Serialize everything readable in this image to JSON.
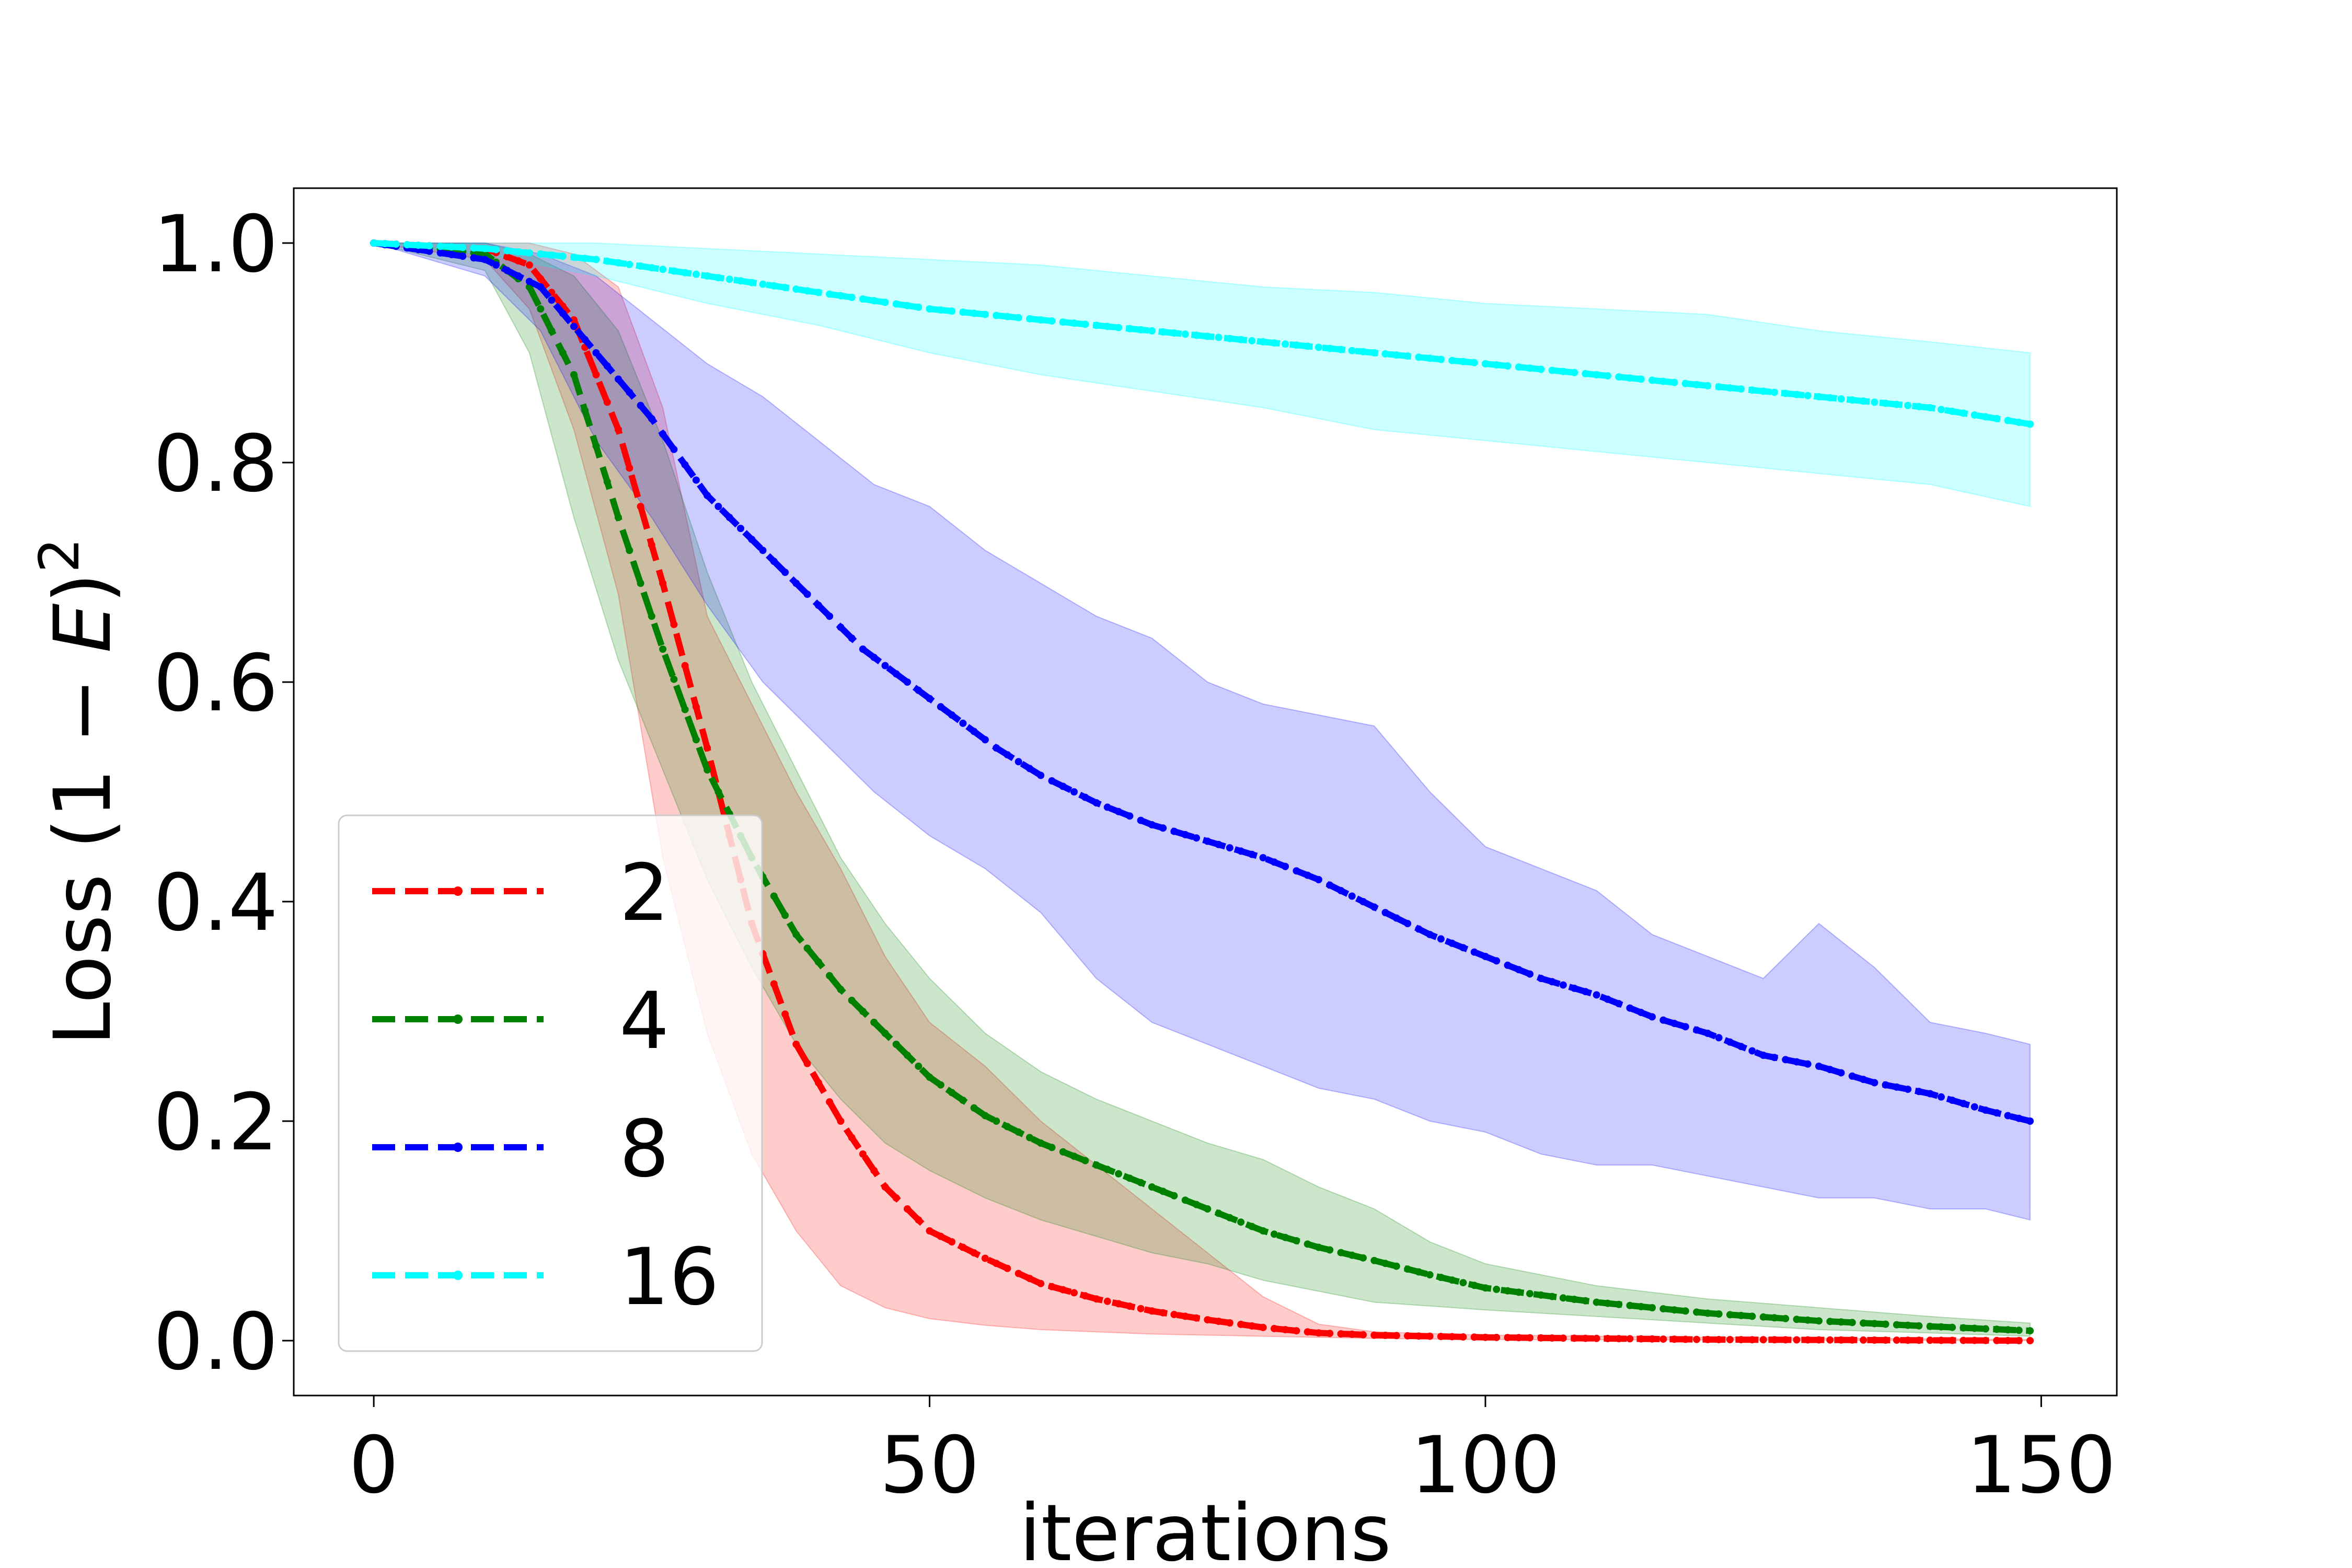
{
  "chart_data": {
    "type": "line",
    "title": "",
    "xlabel": "iterations",
    "ylabel_main": "Loss (1 − ",
    "ylabel_var": "E",
    "ylabel_close": ")",
    "ylabel_sup": "2",
    "xlim": [
      -7.2,
      156.8
    ],
    "ylim": [
      -0.05,
      1.05
    ],
    "xticks": [
      0,
      50,
      100,
      150
    ],
    "xtick_labels": [
      "0",
      "50",
      "100",
      "150"
    ],
    "yticks": [
      0.0,
      0.2,
      0.4,
      0.6,
      0.8,
      1.0
    ],
    "ytick_labels": [
      "0.0",
      "0.2",
      "0.4",
      "0.6",
      "0.8",
      "1.0"
    ],
    "grid": false,
    "legend_position": "lower-left",
    "x_range": [
      0,
      149
    ],
    "series": [
      {
        "name": "2",
        "color": "#ff0000",
        "mean": [
          [
            0,
            1.0
          ],
          [
            10,
            0.995
          ],
          [
            14,
            0.98
          ],
          [
            18,
            0.93
          ],
          [
            22,
            0.83
          ],
          [
            26,
            0.69
          ],
          [
            30,
            0.54
          ],
          [
            34,
            0.38
          ],
          [
            38,
            0.27
          ],
          [
            42,
            0.2
          ],
          [
            46,
            0.14
          ],
          [
            50,
            0.1
          ],
          [
            55,
            0.075
          ],
          [
            60,
            0.052
          ],
          [
            65,
            0.038
          ],
          [
            70,
            0.027
          ],
          [
            75,
            0.019
          ],
          [
            80,
            0.012
          ],
          [
            85,
            0.007
          ],
          [
            90,
            0.005
          ],
          [
            100,
            0.003
          ],
          [
            110,
            0.002
          ],
          [
            120,
            0.001
          ],
          [
            149,
            0.0
          ]
        ],
        "upper": [
          [
            0,
            1.0
          ],
          [
            10,
            1.0
          ],
          [
            14,
            1.0
          ],
          [
            18,
            0.99
          ],
          [
            22,
            0.96
          ],
          [
            26,
            0.85
          ],
          [
            30,
            0.66
          ],
          [
            34,
            0.58
          ],
          [
            38,
            0.5
          ],
          [
            42,
            0.43
          ],
          [
            46,
            0.35
          ],
          [
            50,
            0.29
          ],
          [
            55,
            0.25
          ],
          [
            60,
            0.2
          ],
          [
            65,
            0.16
          ],
          [
            70,
            0.12
          ],
          [
            75,
            0.08
          ],
          [
            80,
            0.04
          ],
          [
            85,
            0.015
          ],
          [
            90,
            0.008
          ],
          [
            100,
            0.005
          ],
          [
            120,
            0.003
          ],
          [
            149,
            0.001
          ]
        ],
        "lower": [
          [
            0,
            1.0
          ],
          [
            10,
            0.985
          ],
          [
            14,
            0.94
          ],
          [
            18,
            0.83
          ],
          [
            22,
            0.68
          ],
          [
            26,
            0.44
          ],
          [
            30,
            0.28
          ],
          [
            34,
            0.17
          ],
          [
            38,
            0.1
          ],
          [
            42,
            0.05
          ],
          [
            46,
            0.03
          ],
          [
            50,
            0.02
          ],
          [
            55,
            0.014
          ],
          [
            60,
            0.01
          ],
          [
            65,
            0.008
          ],
          [
            70,
            0.006
          ],
          [
            80,
            0.004
          ],
          [
            90,
            0.002
          ],
          [
            100,
            0.001
          ],
          [
            149,
            0.0
          ]
        ]
      },
      {
        "name": "4",
        "color": "#008000",
        "mean": [
          [
            0,
            1.0
          ],
          [
            10,
            0.99
          ],
          [
            14,
            0.96
          ],
          [
            18,
            0.88
          ],
          [
            22,
            0.75
          ],
          [
            26,
            0.63
          ],
          [
            30,
            0.52
          ],
          [
            34,
            0.44
          ],
          [
            38,
            0.37
          ],
          [
            42,
            0.32
          ],
          [
            46,
            0.28
          ],
          [
            50,
            0.24
          ],
          [
            55,
            0.205
          ],
          [
            60,
            0.18
          ],
          [
            65,
            0.16
          ],
          [
            70,
            0.14
          ],
          [
            75,
            0.12
          ],
          [
            80,
            0.1
          ],
          [
            85,
            0.085
          ],
          [
            90,
            0.073
          ],
          [
            95,
            0.06
          ],
          [
            100,
            0.048
          ],
          [
            110,
            0.035
          ],
          [
            120,
            0.025
          ],
          [
            130,
            0.018
          ],
          [
            140,
            0.013
          ],
          [
            149,
            0.009
          ]
        ],
        "upper": [
          [
            0,
            1.0
          ],
          [
            10,
            1.0
          ],
          [
            14,
            0.99
          ],
          [
            18,
            0.97
          ],
          [
            22,
            0.92
          ],
          [
            26,
            0.82
          ],
          [
            30,
            0.7
          ],
          [
            34,
            0.6
          ],
          [
            38,
            0.52
          ],
          [
            42,
            0.44
          ],
          [
            46,
            0.38
          ],
          [
            50,
            0.33
          ],
          [
            55,
            0.28
          ],
          [
            60,
            0.245
          ],
          [
            65,
            0.22
          ],
          [
            70,
            0.2
          ],
          [
            75,
            0.18
          ],
          [
            80,
            0.165
          ],
          [
            85,
            0.14
          ],
          [
            90,
            0.12
          ],
          [
            95,
            0.09
          ],
          [
            100,
            0.07
          ],
          [
            110,
            0.05
          ],
          [
            120,
            0.038
          ],
          [
            130,
            0.03
          ],
          [
            140,
            0.022
          ],
          [
            149,
            0.016
          ]
        ],
        "lower": [
          [
            0,
            1.0
          ],
          [
            10,
            0.975
          ],
          [
            14,
            0.9
          ],
          [
            18,
            0.75
          ],
          [
            22,
            0.62
          ],
          [
            26,
            0.52
          ],
          [
            30,
            0.42
          ],
          [
            34,
            0.34
          ],
          [
            38,
            0.27
          ],
          [
            42,
            0.22
          ],
          [
            46,
            0.18
          ],
          [
            50,
            0.155
          ],
          [
            55,
            0.13
          ],
          [
            60,
            0.11
          ],
          [
            65,
            0.095
          ],
          [
            70,
            0.08
          ],
          [
            75,
            0.07
          ],
          [
            80,
            0.055
          ],
          [
            85,
            0.045
          ],
          [
            90,
            0.035
          ],
          [
            100,
            0.028
          ],
          [
            110,
            0.022
          ],
          [
            120,
            0.016
          ],
          [
            130,
            0.01
          ],
          [
            140,
            0.007
          ],
          [
            149,
            0.004
          ]
        ]
      },
      {
        "name": "8",
        "color": "#0000ff",
        "mean": [
          [
            0,
            1.0
          ],
          [
            10,
            0.985
          ],
          [
            15,
            0.96
          ],
          [
            20,
            0.9
          ],
          [
            25,
            0.84
          ],
          [
            30,
            0.77
          ],
          [
            35,
            0.72
          ],
          [
            40,
            0.67
          ],
          [
            44,
            0.63
          ],
          [
            48,
            0.6
          ],
          [
            52,
            0.57
          ],
          [
            56,
            0.54
          ],
          [
            60,
            0.515
          ],
          [
            65,
            0.49
          ],
          [
            70,
            0.47
          ],
          [
            75,
            0.455
          ],
          [
            80,
            0.44
          ],
          [
            85,
            0.42
          ],
          [
            90,
            0.395
          ],
          [
            95,
            0.37
          ],
          [
            100,
            0.35
          ],
          [
            105,
            0.33
          ],
          [
            110,
            0.315
          ],
          [
            115,
            0.295
          ],
          [
            120,
            0.28
          ],
          [
            125,
            0.26
          ],
          [
            130,
            0.25
          ],
          [
            135,
            0.235
          ],
          [
            140,
            0.225
          ],
          [
            145,
            0.21
          ],
          [
            149,
            0.2
          ]
        ],
        "upper": [
          [
            0,
            1.0
          ],
          [
            10,
            1.0
          ],
          [
            15,
            0.99
          ],
          [
            20,
            0.97
          ],
          [
            25,
            0.93
          ],
          [
            30,
            0.89
          ],
          [
            35,
            0.86
          ],
          [
            40,
            0.82
          ],
          [
            45,
            0.78
          ],
          [
            50,
            0.76
          ],
          [
            55,
            0.72
          ],
          [
            60,
            0.69
          ],
          [
            65,
            0.66
          ],
          [
            70,
            0.64
          ],
          [
            75,
            0.6
          ],
          [
            80,
            0.58
          ],
          [
            85,
            0.57
          ],
          [
            90,
            0.56
          ],
          [
            95,
            0.5
          ],
          [
            100,
            0.45
          ],
          [
            105,
            0.43
          ],
          [
            110,
            0.41
          ],
          [
            115,
            0.37
          ],
          [
            120,
            0.35
          ],
          [
            125,
            0.33
          ],
          [
            130,
            0.38
          ],
          [
            135,
            0.34
          ],
          [
            140,
            0.29
          ],
          [
            145,
            0.28
          ],
          [
            149,
            0.27
          ]
        ],
        "lower": [
          [
            0,
            1.0
          ],
          [
            10,
            0.97
          ],
          [
            15,
            0.92
          ],
          [
            20,
            0.82
          ],
          [
            25,
            0.75
          ],
          [
            30,
            0.67
          ],
          [
            35,
            0.6
          ],
          [
            40,
            0.55
          ],
          [
            45,
            0.5
          ],
          [
            50,
            0.46
          ],
          [
            55,
            0.43
          ],
          [
            60,
            0.39
          ],
          [
            65,
            0.33
          ],
          [
            70,
            0.29
          ],
          [
            75,
            0.27
          ],
          [
            80,
            0.25
          ],
          [
            85,
            0.23
          ],
          [
            90,
            0.22
          ],
          [
            95,
            0.2
          ],
          [
            100,
            0.19
          ],
          [
            105,
            0.17
          ],
          [
            110,
            0.16
          ],
          [
            115,
            0.16
          ],
          [
            120,
            0.15
          ],
          [
            125,
            0.14
          ],
          [
            130,
            0.13
          ],
          [
            135,
            0.13
          ],
          [
            140,
            0.12
          ],
          [
            145,
            0.12
          ],
          [
            149,
            0.11
          ]
        ]
      },
      {
        "name": "16",
        "color": "#00ffff",
        "mean": [
          [
            0,
            1.0
          ],
          [
            10,
            0.995
          ],
          [
            20,
            0.985
          ],
          [
            30,
            0.97
          ],
          [
            40,
            0.955
          ],
          [
            50,
            0.94
          ],
          [
            60,
            0.93
          ],
          [
            70,
            0.92
          ],
          [
            80,
            0.91
          ],
          [
            90,
            0.9
          ],
          [
            100,
            0.89
          ],
          [
            110,
            0.88
          ],
          [
            120,
            0.87
          ],
          [
            130,
            0.86
          ],
          [
            140,
            0.85
          ],
          [
            149,
            0.835
          ]
        ],
        "upper": [
          [
            0,
            1.0
          ],
          [
            10,
            1.0
          ],
          [
            20,
            1.0
          ],
          [
            30,
            0.995
          ],
          [
            40,
            0.99
          ],
          [
            50,
            0.985
          ],
          [
            60,
            0.98
          ],
          [
            70,
            0.97
          ],
          [
            80,
            0.96
          ],
          [
            90,
            0.955
          ],
          [
            100,
            0.945
          ],
          [
            110,
            0.94
          ],
          [
            120,
            0.935
          ],
          [
            130,
            0.92
          ],
          [
            140,
            0.91
          ],
          [
            149,
            0.9
          ]
        ],
        "lower": [
          [
            0,
            1.0
          ],
          [
            10,
            0.99
          ],
          [
            20,
            0.97
          ],
          [
            30,
            0.945
          ],
          [
            40,
            0.925
          ],
          [
            50,
            0.9
          ],
          [
            60,
            0.88
          ],
          [
            70,
            0.865
          ],
          [
            80,
            0.85
          ],
          [
            90,
            0.83
          ],
          [
            100,
            0.82
          ],
          [
            110,
            0.81
          ],
          [
            120,
            0.8
          ],
          [
            130,
            0.79
          ],
          [
            140,
            0.78
          ],
          [
            149,
            0.76
          ]
        ]
      }
    ]
  }
}
